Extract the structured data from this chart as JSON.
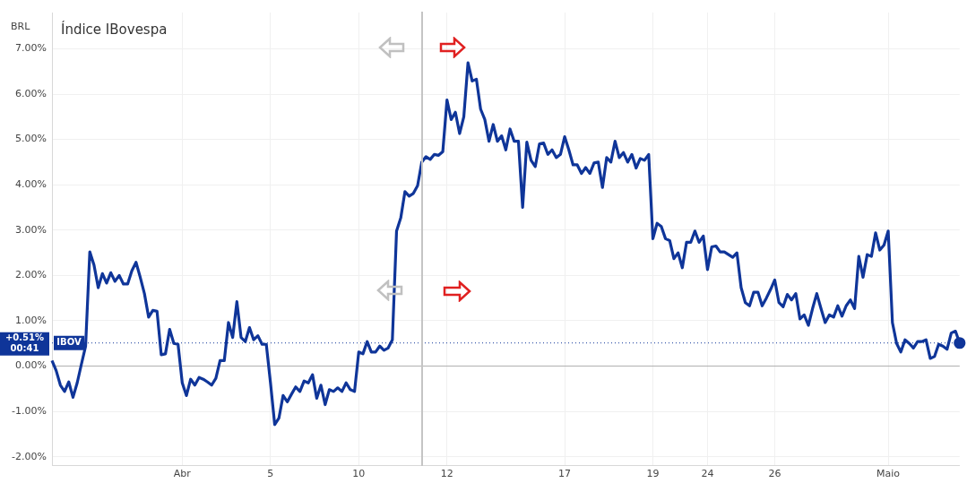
{
  "chart_data": {
    "type": "line",
    "title": "Índice IBovespa",
    "annotations": [
      "BRL",
      "00:41",
      "IBOV"
    ],
    "series": [
      {
        "color": "#0f3599",
        "values": [
          0.12,
          -0.1,
          -0.42,
          -0.56,
          -0.35,
          -0.69,
          -0.37,
          0.04,
          0.44,
          2.52,
          2.23,
          1.73,
          2.04,
          1.83,
          2.06,
          1.87,
          2.0,
          1.81,
          1.81,
          2.1,
          2.29,
          1.96,
          1.6,
          1.08,
          1.23,
          1.21,
          0.25,
          0.27,
          0.81,
          0.5,
          0.48,
          -0.37,
          -0.65,
          -0.29,
          -0.42,
          -0.25,
          -0.29,
          -0.35,
          -0.42,
          -0.27,
          0.12,
          0.12,
          0.96,
          0.63,
          1.42,
          0.63,
          0.54,
          0.85,
          0.58,
          0.67,
          0.48,
          0.48,
          -0.37,
          -1.29,
          -1.15,
          -0.65,
          -0.79,
          -0.62,
          -0.46,
          -0.56,
          -0.33,
          -0.37,
          -0.19,
          -0.71,
          -0.42,
          -0.85,
          -0.52,
          -0.56,
          -0.48,
          -0.56,
          -0.37,
          -0.52,
          -0.56,
          0.31,
          0.27,
          0.54,
          0.31,
          0.31,
          0.44,
          0.35,
          0.4,
          0.58,
          2.98,
          3.27,
          3.85,
          3.75,
          3.81,
          3.98,
          4.5,
          4.62,
          4.56,
          4.67,
          4.65,
          4.73,
          5.87,
          5.44,
          5.6,
          5.13,
          5.5,
          6.69,
          6.29,
          6.33,
          5.67,
          5.44,
          4.96,
          5.33,
          4.96,
          5.08,
          4.77,
          5.23,
          4.96,
          4.96,
          3.5,
          4.94,
          4.54,
          4.4,
          4.9,
          4.92,
          4.67,
          4.77,
          4.6,
          4.67,
          5.06,
          4.77,
          4.44,
          4.44,
          4.25,
          4.38,
          4.25,
          4.48,
          4.5,
          3.94,
          4.6,
          4.5,
          4.96,
          4.6,
          4.71,
          4.5,
          4.67,
          4.37,
          4.58,
          4.54,
          4.67,
          2.81,
          3.15,
          3.08,
          2.81,
          2.77,
          2.37,
          2.5,
          2.17,
          2.73,
          2.73,
          2.98,
          2.73,
          2.87,
          2.13,
          2.63,
          2.65,
          2.52,
          2.52,
          2.46,
          2.4,
          2.5,
          1.73,
          1.4,
          1.33,
          1.63,
          1.63,
          1.33,
          1.5,
          1.69,
          1.9,
          1.4,
          1.31,
          1.58,
          1.46,
          1.6,
          1.04,
          1.13,
          0.9,
          1.27,
          1.6,
          1.27,
          0.96,
          1.13,
          1.08,
          1.33,
          1.1,
          1.33,
          1.46,
          1.27,
          2.42,
          1.96,
          2.46,
          2.42,
          2.94,
          2.56,
          2.67,
          2.98,
          0.96,
          0.5,
          0.31,
          0.58,
          0.5,
          0.4,
          0.54,
          0.54,
          0.58,
          0.17,
          0.21,
          0.48,
          0.44,
          0.37,
          0.73,
          0.77,
          0.51
        ]
      }
    ],
    "categories": [
      null,
      null,
      null,
      null,
      null,
      null,
      null,
      null,
      null,
      null,
      null,
      null,
      null,
      null,
      null,
      null,
      null,
      null,
      null,
      null,
      null,
      null,
      null,
      null,
      null,
      null,
      null,
      null,
      null,
      null,
      null,
      "Abr",
      null,
      null,
      null,
      null,
      null,
      null,
      null,
      null,
      null,
      null,
      null,
      null,
      null,
      null,
      null,
      null,
      null,
      null,
      null,
      null,
      "5",
      null,
      null,
      null,
      null,
      null,
      null,
      null,
      null,
      null,
      null,
      null,
      null,
      null,
      null,
      null,
      null,
      null,
      null,
      null,
      null,
      "10",
      null,
      null,
      null,
      null,
      null,
      null,
      null,
      null,
      null,
      null,
      null,
      null,
      null,
      null,
      null,
      null,
      null,
      null,
      null,
      null,
      "12",
      null,
      null,
      null,
      null,
      null,
      null,
      null,
      null,
      null,
      null,
      null,
      null,
      null,
      null,
      null,
      null,
      null,
      null,
      null,
      null,
      null,
      null,
      null,
      null,
      null,
      null,
      null,
      "17",
      null,
      null,
      null,
      null,
      null,
      null,
      null,
      null,
      null,
      null,
      null,
      null,
      null,
      null,
      null,
      null,
      null,
      null,
      null,
      null,
      "19",
      null,
      null,
      null,
      null,
      null,
      null,
      null,
      null,
      null,
      null,
      null,
      null,
      "24",
      null,
      null,
      null,
      null,
      null,
      null,
      null,
      null,
      null,
      null,
      null,
      null,
      null,
      null,
      null,
      "26",
      null,
      null,
      null,
      null,
      null,
      null,
      null,
      null,
      null,
      null,
      null,
      null,
      null,
      null,
      null,
      null,
      null,
      null,
      null,
      null,
      null,
      null,
      null,
      null,
      null,
      null,
      "Maio",
      null,
      null,
      null,
      null,
      null,
      null,
      null,
      null,
      null,
      null,
      null,
      null,
      null,
      null,
      null,
      null,
      null
    ],
    "ylim": [
      -2.2,
      7.8
    ],
    "yticks": [
      {
        "value": -2,
        "label": "-2.00%"
      },
      {
        "value": -1,
        "label": "-1.00%"
      },
      {
        "value": 0,
        "label": "0.00%"
      },
      {
        "value": 1,
        "label": "1.00%"
      },
      {
        "value": 2,
        "label": "2.00%"
      },
      {
        "value": 3,
        "label": "3.00%"
      },
      {
        "value": 4,
        "label": "4.00%"
      },
      {
        "value": 5,
        "label": "5.00%"
      },
      {
        "value": 6,
        "label": "6.00%"
      },
      {
        "value": 7,
        "label": "7.00%"
      }
    ],
    "ref_lines": [
      {
        "axis": "y",
        "value": 0,
        "color": "#b0b0b0",
        "line_style": "solid"
      },
      {
        "axis": "y",
        "value": 0.51,
        "label": "+0.51%",
        "color": "#0f3599",
        "line_style": "dotted"
      }
    ],
    "grid": true,
    "legend": false,
    "line_style": "solid"
  }
}
